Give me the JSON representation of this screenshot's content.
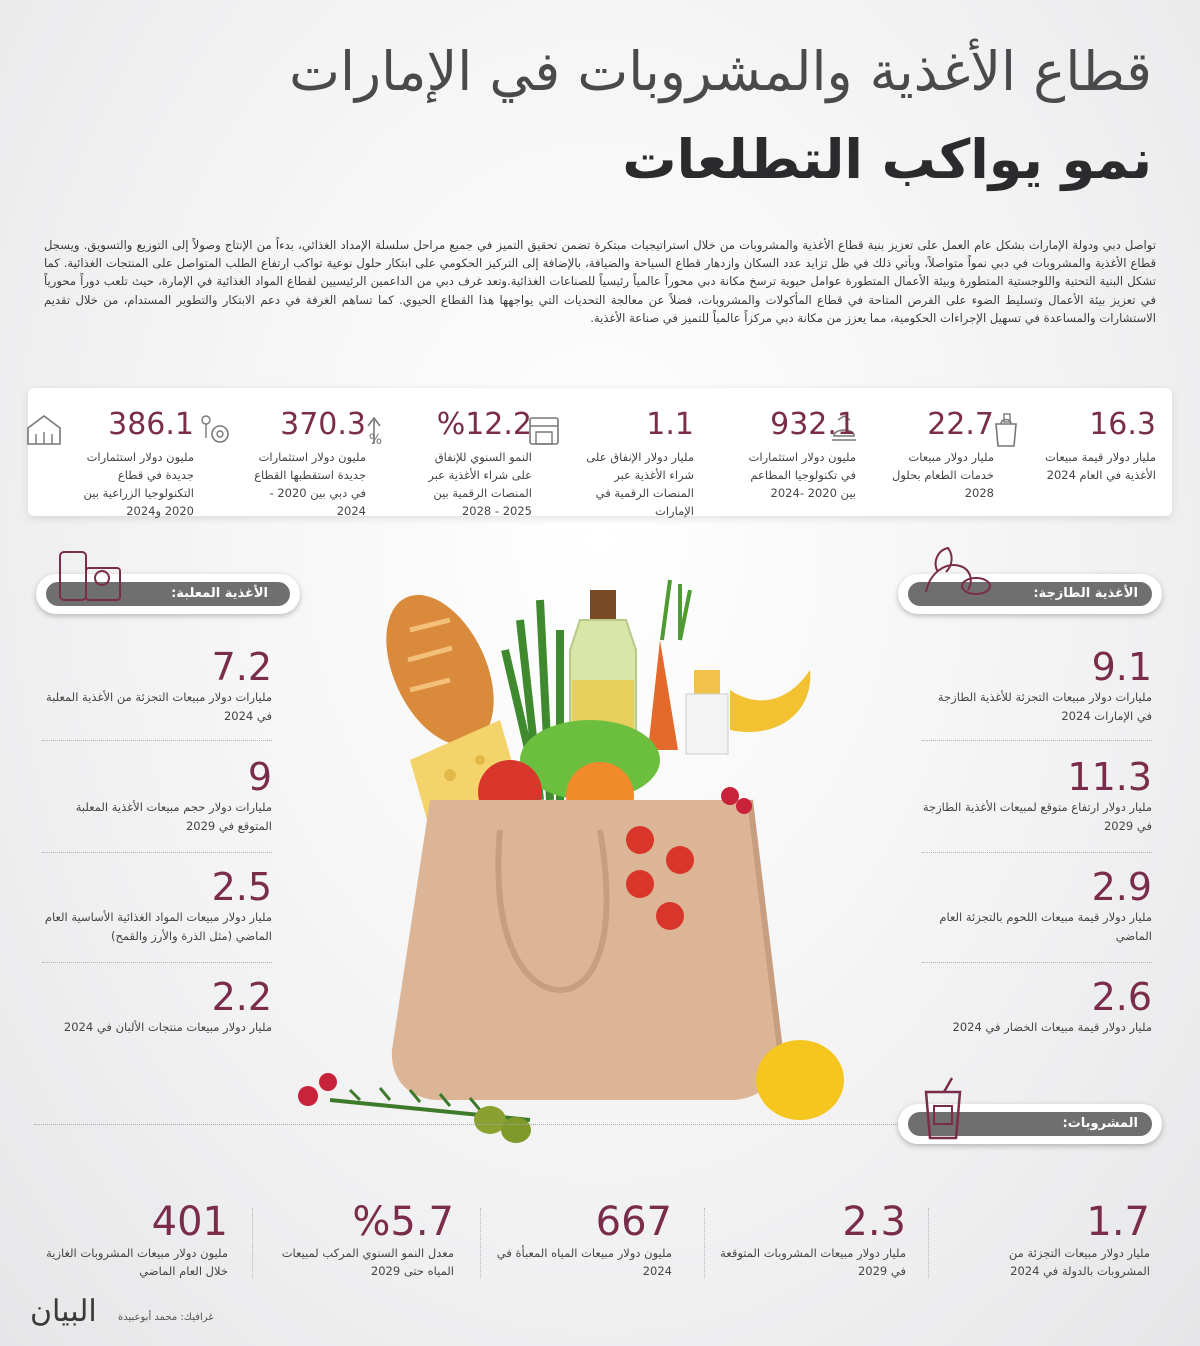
{
  "header": {
    "title_line1": "قطاع الأغذية والمشروبات في الإمارات",
    "title_line2": "نمو يواكب التطلعات"
  },
  "intro": "تواصل دبي ودولة الإمارات بشكل عام العمل على تعزيز بنية قطاع الأغذية والمشروبات من خلال استراتيجيات مبتكرة تضمن تحقيق التميز في جميع مراحل سلسلة الإمداد الغذائي، بدءاً من الإنتاج وصولاً إلى التوزيع والتسويق. ويسجل قطاع الأغذية والمشروبات في دبي نمواً متواصلاً، ويأتي ذلك في ظل تزايد عدد السكان وازدهار قطاع السياحة والضيافة، بالإضافة إلى التركيز الحكومي على ابتكار حلول نوعية تواكب ارتفاع الطلب المتواصل على المنتجات الغذائية. كما تشكل البنية التحتية واللوجستية المتطورة وبيئة الأعمال المتطورة عوامل حيوية ترسخ مكانة دبي محوراً عالمياً رئيسياً للصناعات الغذائية.وتعد غرف دبي من الداعمين الرئيسيين لقطاع المواد الغذائية في الإمارة، حيث تلعب دوراً محورياً في تعزيز بيئة الأعمال وتسليط الضوء على الفرص المتاحة في قطاع المأكولات والمشروبات، فضلاً عن معالجة التحديات التي يواجهها هذا القطاع الحيوي. كما تساهم الغرفة في دعم الابتكار والتطوير المستدام، من خلال تقديم الاستشارات والمساعدة في تسهيل الإجراءات الحكومية، مما يعزز من مكانة دبي مركزاً عالمياً للتميز في صناعة الأغذية.",
  "top_stats": [
    {
      "value": "16.3",
      "label": "مليار دولار قيمة مبيعات الأغذية في العام 2024",
      "icon": "grocery-bag-icon"
    },
    {
      "value": "22.7",
      "label": "مليار دولار مبيعات خدمات الطعام بحلول 2028",
      "icon": "food-service-icon"
    },
    {
      "value": "932.1",
      "label": "مليون دولار استثمارات في تكنولوجيا المطاعم بين 2020 -2024",
      "icon": "restaurant-tech-icon"
    },
    {
      "value": "1.1",
      "label": "مليار دولار الإنفاق على شراء الأغذية عبر المنصات الرقمية في الإمارات",
      "icon": "online-store-icon"
    },
    {
      "value": "%12.2",
      "label": "النمو السنوي للإنفاق على شراء الأغذية عبر المنصات الرقمية بين 2025 - 2028",
      "icon": "growth-percent-icon"
    },
    {
      "value": "370.3",
      "label": "مليون دولار استثمارات جديدة استقطبها القطاع في دبي بين 2020 - 2024",
      "icon": "investment-gear-icon"
    },
    {
      "value": "386.1",
      "label": "مليون دولار استثمارات جديدة في قطاع التكنولوجيا الزراعية بين 2020 و2024",
      "icon": "agritech-greenhouse-icon"
    }
  ],
  "fresh_food": {
    "heading": "الأغذية الطازجة:",
    "items": [
      {
        "value": "9.1",
        "label": "مليارات دولار مبيعات التجزئة للأغذية الطازجة في الإمارات 2024"
      },
      {
        "value": "11.3",
        "label": "مليار دولار ارتفاع متوقع لمبيعات الأغذية الطازجة في 2029"
      },
      {
        "value": "2.9",
        "label": "مليار دولار قيمة مبيعات اللحوم بالتجزئة العام الماضي"
      },
      {
        "value": "2.6",
        "label": "مليار دولار قيمة مبيعات الخضار في 2024"
      }
    ]
  },
  "packaged_food": {
    "heading": "الأغذية المعلبة:",
    "items": [
      {
        "value": "7.2",
        "label": "مليارات دولار مبيعات التجزئة من الأغذية المعلبة في 2024"
      },
      {
        "value": "9",
        "label": "مليارات دولار حجم مبيعات الأغذية المعلبة المتوقع في 2029"
      },
      {
        "value": "2.5",
        "label": "مليار دولار مبيعات المواد الغذائية الأساسية العام الماضي (مثل الذرة والأرز والقمح)"
      },
      {
        "value": "2.2",
        "label": "مليار دولار مبيعات منتجات الألبان في 2024"
      }
    ]
  },
  "beverages": {
    "heading": "المشروبات:",
    "items": [
      {
        "value": "1.7",
        "label": "مليار دولار مبيعات التجزئة من المشروبات بالدولة في 2024"
      },
      {
        "value": "2.3",
        "label": "مليار دولار مبيعات المشروبات المتوقعة في 2029"
      },
      {
        "value": "667",
        "label": "مليون دولار مبيعات المياه المعبأة في 2024"
      },
      {
        "value": "%5.7",
        "label": "معدل النمو السنوي المركب لمبيعات المياه حتى 2029"
      },
      {
        "value": "401",
        "label": "مليون دولار مبيعات المشروبات الغازية خلال العام الماضي"
      }
    ]
  },
  "footer": {
    "credit": "غرافيك: محمد أبوعبيدة",
    "logo": "البيان"
  },
  "colors": {
    "accent": "#7a2d4a",
    "pill": "#6f6f70",
    "bag": "#dcb597"
  }
}
